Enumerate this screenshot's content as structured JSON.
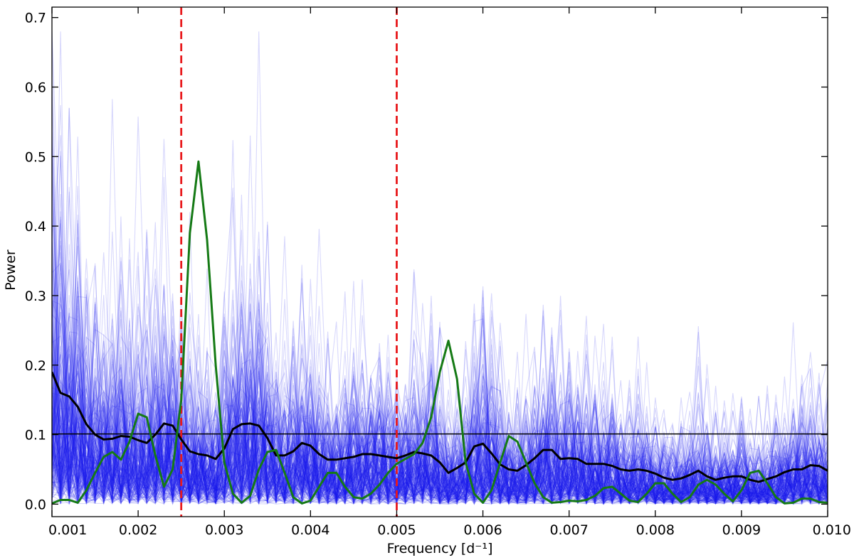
{
  "chart_data": {
    "type": "line",
    "title": "",
    "xlabel": "Frequency [d⁻¹]",
    "ylabel": "Power",
    "xlim": [
      0.001,
      0.01
    ],
    "ylim": [
      -0.018,
      0.715
    ],
    "x_ticks": [
      0.001,
      0.002,
      0.003,
      0.004,
      0.005,
      0.006,
      0.007,
      0.008,
      0.009,
      0.01
    ],
    "x_tick_labels": [
      "0.001",
      "0.002",
      "0.003",
      "0.004",
      "0.005",
      "0.006",
      "0.007",
      "0.008",
      "0.009",
      "0.010"
    ],
    "y_ticks": [
      0.0,
      0.1,
      0.2,
      0.3,
      0.4,
      0.5,
      0.6,
      0.7
    ],
    "y_tick_labels": [
      "0.0",
      "0.1",
      "0.2",
      "0.3",
      "0.4",
      "0.5",
      "0.6",
      "0.7"
    ],
    "grid": false,
    "legend": "none",
    "threshold_line": {
      "y": 0.101,
      "color": "#000000"
    },
    "vertical_lines": [
      {
        "x": 0.0025,
        "color": "#e8191c",
        "style": "dashed"
      },
      {
        "x": 0.005,
        "color": "#e8191c",
        "style": "dashed"
      }
    ],
    "series": [
      {
        "role": "observed",
        "color": "#157a15",
        "x": [
          0.001,
          0.0011,
          0.0012,
          0.0013,
          0.0014,
          0.0015,
          0.0016,
          0.0017,
          0.0018,
          0.0019,
          0.002,
          0.0021,
          0.0022,
          0.0023,
          0.0024,
          0.0025,
          0.0026,
          0.0027,
          0.0028,
          0.0029,
          0.003,
          0.0031,
          0.0032,
          0.0033,
          0.0034,
          0.0035,
          0.0036,
          0.0037,
          0.0038,
          0.0039,
          0.004,
          0.0041,
          0.0042,
          0.0043,
          0.0044,
          0.0045,
          0.0046,
          0.0047,
          0.0048,
          0.0049,
          0.005,
          0.0051,
          0.0052,
          0.0053,
          0.0054,
          0.0055,
          0.0056,
          0.0057,
          0.0058,
          0.0059,
          0.006,
          0.0061,
          0.0062,
          0.0063,
          0.0064,
          0.0065,
          0.0066,
          0.0067,
          0.0068,
          0.0069,
          0.007,
          0.0071,
          0.0072,
          0.0073,
          0.0074,
          0.0075,
          0.0076,
          0.0077,
          0.0078,
          0.0079,
          0.008,
          0.0081,
          0.0082,
          0.0083,
          0.0084,
          0.0085,
          0.0086,
          0.0087,
          0.0088,
          0.0089,
          0.009,
          0.0091,
          0.0092,
          0.0093,
          0.0094,
          0.0095,
          0.0096,
          0.0097,
          0.0098,
          0.0099,
          0.01
        ],
        "y": [
          0.001,
          0.006,
          0.006,
          0.002,
          0.02,
          0.045,
          0.068,
          0.075,
          0.064,
          0.09,
          0.13,
          0.125,
          0.07,
          0.025,
          0.05,
          0.15,
          0.39,
          0.493,
          0.38,
          0.2,
          0.06,
          0.015,
          0.002,
          0.012,
          0.05,
          0.075,
          0.078,
          0.045,
          0.01,
          0.001,
          0.005,
          0.025,
          0.045,
          0.045,
          0.025,
          0.01,
          0.008,
          0.015,
          0.028,
          0.045,
          0.058,
          0.065,
          0.072,
          0.088,
          0.125,
          0.19,
          0.235,
          0.18,
          0.06,
          0.015,
          0.002,
          0.02,
          0.06,
          0.098,
          0.09,
          0.06,
          0.03,
          0.01,
          0.002,
          0.003,
          0.005,
          0.004,
          0.006,
          0.012,
          0.023,
          0.025,
          0.015,
          0.005,
          0.003,
          0.015,
          0.03,
          0.03,
          0.015,
          0.003,
          0.01,
          0.028,
          0.035,
          0.028,
          0.015,
          0.004,
          0.02,
          0.045,
          0.048,
          0.03,
          0.01,
          0.001,
          0.002,
          0.008,
          0.008,
          0.003,
          0.002
        ]
      },
      {
        "role": "median",
        "color": "#000000",
        "x": [
          0.001,
          0.0011,
          0.0012,
          0.0013,
          0.0014,
          0.0015,
          0.0016,
          0.0017,
          0.0018,
          0.0019,
          0.002,
          0.0021,
          0.0022,
          0.0023,
          0.0024,
          0.0025,
          0.0026,
          0.0027,
          0.0028,
          0.0029,
          0.003,
          0.0031,
          0.0032,
          0.0033,
          0.0034,
          0.0035,
          0.0036,
          0.0037,
          0.0038,
          0.0039,
          0.004,
          0.0041,
          0.0042,
          0.0043,
          0.0044,
          0.0045,
          0.0046,
          0.0047,
          0.0048,
          0.0049,
          0.005,
          0.0051,
          0.0052,
          0.0053,
          0.0054,
          0.0055,
          0.0056,
          0.0057,
          0.0058,
          0.0059,
          0.006,
          0.0061,
          0.0062,
          0.0063,
          0.0064,
          0.0065,
          0.0066,
          0.0067,
          0.0068,
          0.0069,
          0.007,
          0.0071,
          0.0072,
          0.0073,
          0.0074,
          0.0075,
          0.0076,
          0.0077,
          0.0078,
          0.0079,
          0.008,
          0.0081,
          0.0082,
          0.0083,
          0.0084,
          0.0085,
          0.0086,
          0.0087,
          0.0088,
          0.0089,
          0.009,
          0.0091,
          0.0092,
          0.0093,
          0.0094,
          0.0095,
          0.0096,
          0.0097,
          0.0098,
          0.0099,
          0.01
        ],
        "y": [
          0.19,
          0.16,
          0.155,
          0.14,
          0.115,
          0.1,
          0.093,
          0.094,
          0.098,
          0.097,
          0.092,
          0.088,
          0.1,
          0.116,
          0.113,
          0.093,
          0.076,
          0.072,
          0.07,
          0.065,
          0.08,
          0.108,
          0.115,
          0.116,
          0.113,
          0.095,
          0.07,
          0.07,
          0.076,
          0.088,
          0.084,
          0.072,
          0.064,
          0.064,
          0.066,
          0.068,
          0.072,
          0.072,
          0.07,
          0.068,
          0.066,
          0.07,
          0.075,
          0.073,
          0.07,
          0.06,
          0.045,
          0.052,
          0.06,
          0.083,
          0.087,
          0.073,
          0.057,
          0.05,
          0.048,
          0.056,
          0.066,
          0.078,
          0.078,
          0.065,
          0.066,
          0.065,
          0.058,
          0.058,
          0.058,
          0.055,
          0.05,
          0.048,
          0.05,
          0.048,
          0.044,
          0.038,
          0.035,
          0.037,
          0.042,
          0.048,
          0.04,
          0.035,
          0.038,
          0.04,
          0.04,
          0.035,
          0.032,
          0.036,
          0.04,
          0.046,
          0.05,
          0.05,
          0.056,
          0.055,
          0.048
        ]
      }
    ],
    "simulations": {
      "count": 220,
      "color": "#1a1aee",
      "opacity": 0.17,
      "seed": 424242
    }
  }
}
